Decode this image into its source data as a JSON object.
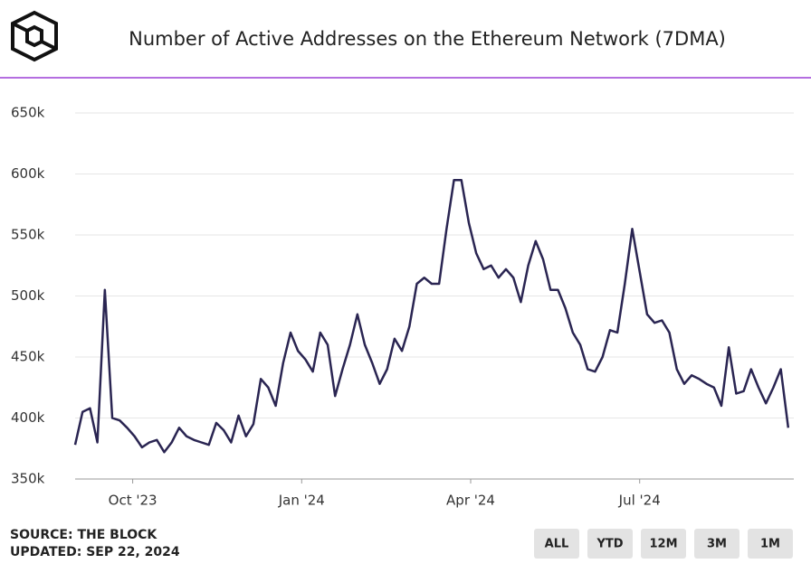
{
  "chart_data": {
    "type": "line",
    "title": "Number of Active Addresses on the Ethereum Network (7DMA)",
    "source": "SOURCE: THE BLOCK",
    "updated": "UPDATED: SEP 22, 2024",
    "buttons": [
      "ALL",
      "YTD",
      "12M",
      "3M",
      "1M"
    ],
    "color": "#2a2552",
    "grid": true,
    "ylim": [
      350000,
      650000
    ],
    "yticks": [
      {
        "value": 350000,
        "label": "350k"
      },
      {
        "value": 400000,
        "label": "400k"
      },
      {
        "value": 450000,
        "label": "450k"
      },
      {
        "value": 500000,
        "label": "500k"
      },
      {
        "value": 550000,
        "label": "550k"
      },
      {
        "value": 600000,
        "label": "600k"
      },
      {
        "value": 650000,
        "label": "650k"
      }
    ],
    "xlim": [
      0,
      96.75
    ],
    "xticks": [
      {
        "value": 7.75,
        "label": "Oct '23"
      },
      {
        "value": 30.5,
        "label": "Jan '24"
      },
      {
        "value": 53.25,
        "label": "Apr '24"
      },
      {
        "value": 76,
        "label": "Jul '24"
      }
    ],
    "values": [
      378000,
      405000,
      408000,
      380000,
      505000,
      400000,
      398000,
      392000,
      385000,
      376000,
      380000,
      382000,
      372000,
      380000,
      392000,
      385000,
      382000,
      380000,
      378000,
      396000,
      390000,
      380000,
      402000,
      385000,
      395000,
      432000,
      425000,
      410000,
      445000,
      470000,
      455000,
      448000,
      438000,
      470000,
      460000,
      418000,
      440000,
      460000,
      485000,
      460000,
      445000,
      428000,
      440000,
      465000,
      455000,
      475000,
      510000,
      515000,
      510000,
      510000,
      555000,
      595000,
      595000,
      560000,
      535000,
      522000,
      525000,
      515000,
      522000,
      515000,
      495000,
      525000,
      545000,
      530000,
      505000,
      505000,
      490000,
      470000,
      460000,
      440000,
      438000,
      450000,
      472000,
      470000,
      510000,
      555000,
      520000,
      485000,
      478000,
      480000,
      470000,
      440000,
      428000,
      435000,
      432000,
      428000,
      425000,
      410000,
      458000,
      420000,
      422000,
      440000,
      425000,
      412000,
      425000,
      440000,
      392000
    ]
  }
}
